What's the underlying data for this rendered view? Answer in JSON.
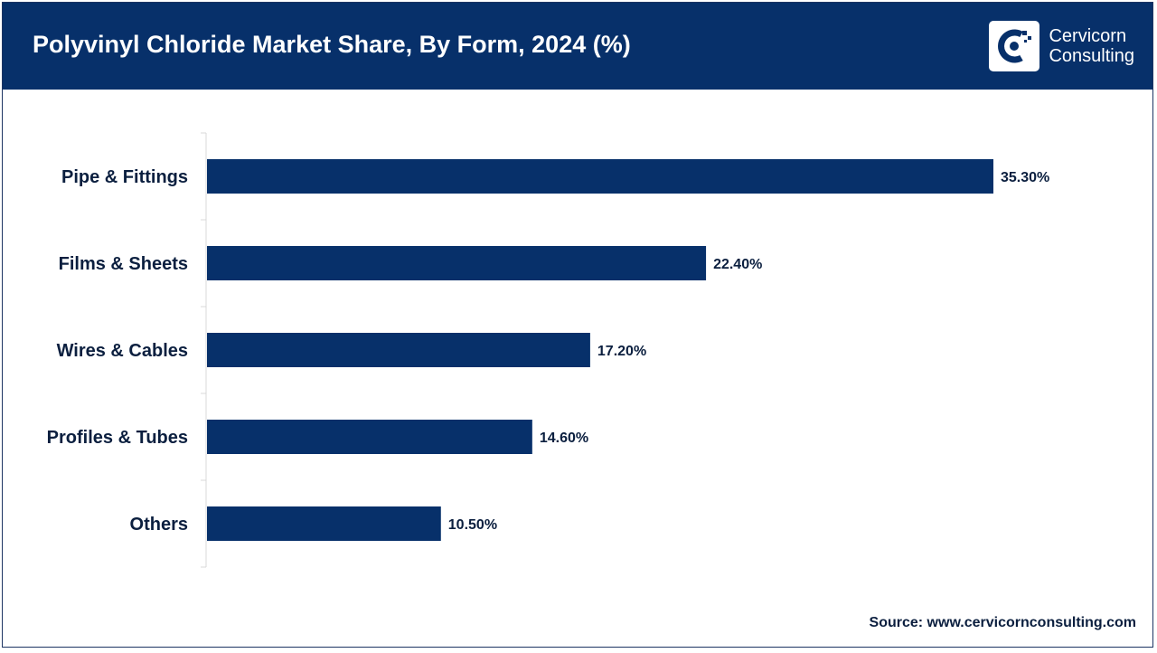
{
  "header": {
    "title": "Polyvinyl Chloride Market Share, By Form, 2024 (%)"
  },
  "logo": {
    "line1": "Cervicorn",
    "line2": "Consulting",
    "icon": "cervicorn-logo-icon"
  },
  "colors": {
    "header_bg": "#07306a",
    "bar": "#07306a",
    "text": "#0b1f3f"
  },
  "source": "Source: www.cervicornconsulting.com",
  "chart_data": {
    "type": "bar",
    "orientation": "horizontal",
    "title": "Polyvinyl Chloride Market Share, By Form, 2024 (%)",
    "categories": [
      "Pipe & Fittings",
      "Films & Sheets",
      "Wires & Cables",
      "Profiles & Tubes",
      "Others"
    ],
    "values": [
      35.3,
      22.4,
      17.2,
      14.6,
      10.5
    ],
    "value_labels": [
      "35.30%",
      "22.40%",
      "17.20%",
      "14.60%",
      "10.50%"
    ],
    "xlabel": "",
    "ylabel": "",
    "xlim": [
      0,
      40
    ],
    "grid": false,
    "legend": "none"
  }
}
